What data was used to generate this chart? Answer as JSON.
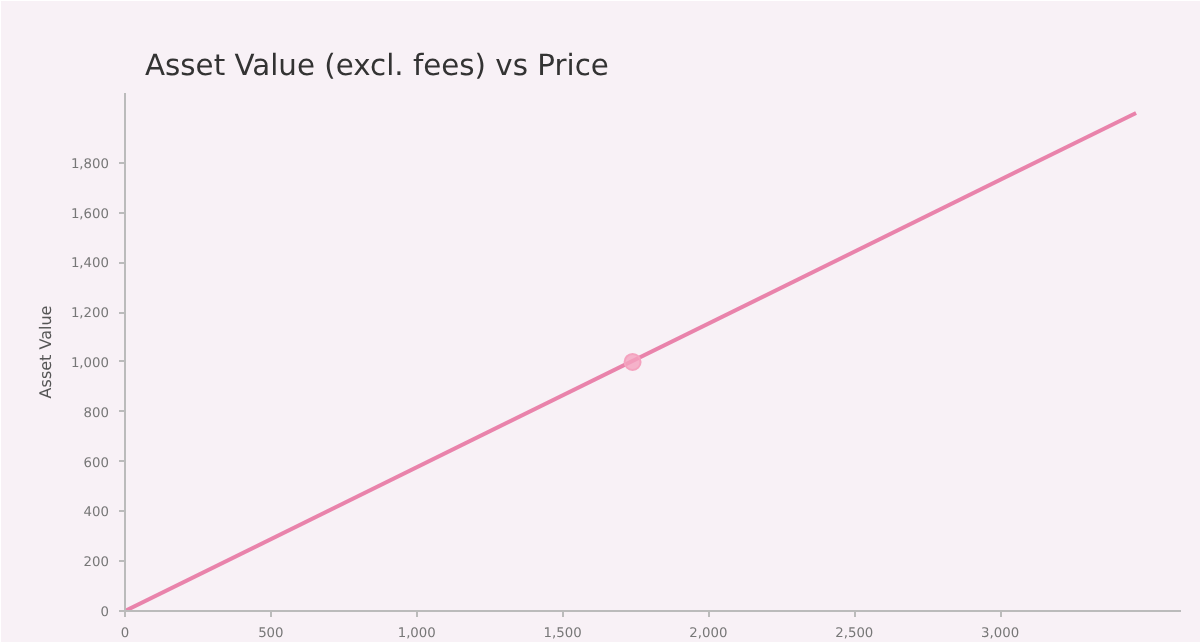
{
  "chart_data": {
    "type": "line",
    "title": "Asset Value (excl. fees) vs Price",
    "ylabel": "Asset Value",
    "xlim": [
      0,
      3620
    ],
    "ylim": [
      0,
      2080
    ],
    "xticks": [
      0,
      {
        "value": 500,
        "label": "500"
      },
      {
        "value": 1000,
        "label": "1,000"
      },
      {
        "value": 1500,
        "label": "1,500"
      },
      {
        "value": 2000,
        "label": "2,000"
      },
      {
        "value": 2500,
        "label": "2,500"
      },
      {
        "value": 3000,
        "label": "3,000"
      }
    ],
    "yticks": [
      0,
      200,
      400,
      600,
      800,
      {
        "value": 1000,
        "label": "1,000"
      },
      {
        "value": 1200,
        "label": "1,200"
      },
      {
        "value": 1400,
        "label": "1,400"
      },
      {
        "value": 1600,
        "label": "1,600"
      },
      {
        "value": 1800,
        "label": "1,800"
      }
    ],
    "grid": false,
    "series": [
      {
        "color": "#e983ab",
        "x": [
          0,
          3466
        ],
        "values": [
          0,
          2000
        ]
      },
      {
        "type": "scatter",
        "color": "#f4a3bf",
        "x": [
          1740
        ],
        "values": [
          1000
        ]
      }
    ]
  }
}
